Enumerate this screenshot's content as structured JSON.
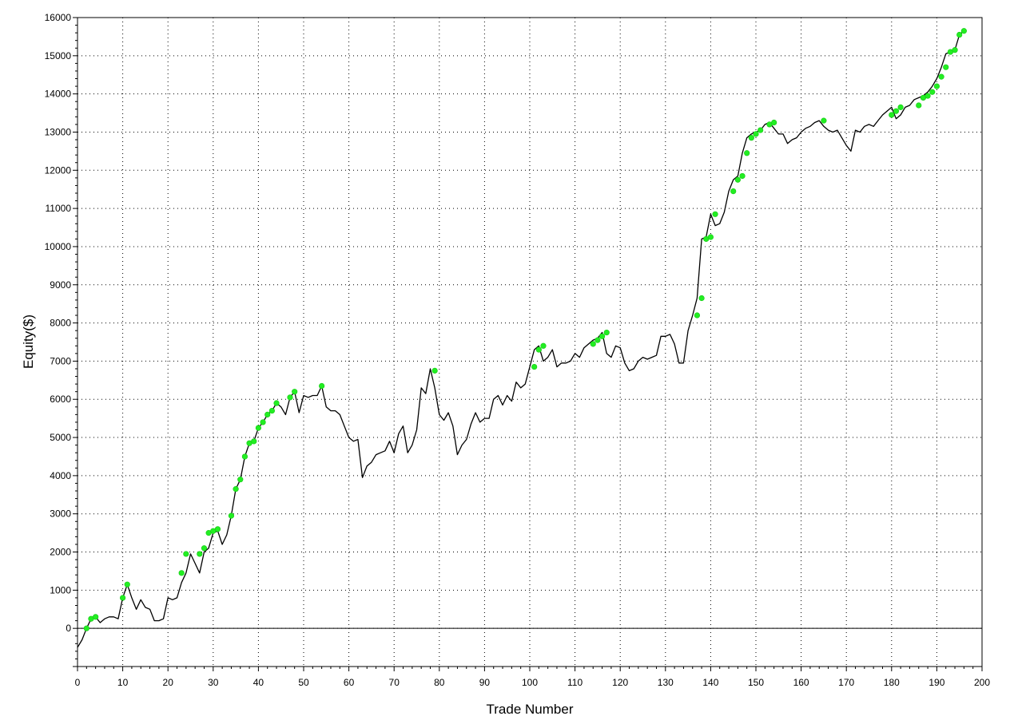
{
  "chart_data": {
    "type": "line",
    "title": "",
    "xlabel": "Trade Number",
    "ylabel": "Equity($)",
    "xlim": [
      0,
      200
    ],
    "ylim": [
      -1000,
      16000
    ],
    "x_ticks": [
      0,
      10,
      20,
      30,
      40,
      50,
      60,
      70,
      80,
      90,
      100,
      110,
      120,
      130,
      140,
      150,
      160,
      170,
      180,
      190,
      200
    ],
    "y_ticks": [
      0,
      1000,
      2000,
      3000,
      4000,
      5000,
      6000,
      7000,
      8000,
      9000,
      10000,
      11000,
      12000,
      13000,
      14000,
      15000,
      16000
    ],
    "grid": true,
    "colors": {
      "line": "#000000",
      "marker": "#22ee22"
    },
    "series": [
      {
        "values": [
          [
            0,
            -500
          ],
          [
            1,
            -300
          ],
          [
            2,
            0
          ],
          [
            3,
            250
          ],
          [
            4,
            300
          ],
          [
            5,
            150
          ],
          [
            6,
            250
          ],
          [
            7,
            300
          ],
          [
            8,
            300
          ],
          [
            9,
            250
          ],
          [
            10,
            800
          ],
          [
            11,
            1150
          ],
          [
            12,
            800
          ],
          [
            13,
            500
          ],
          [
            14,
            750
          ],
          [
            15,
            550
          ],
          [
            16,
            500
          ],
          [
            17,
            200
          ],
          [
            18,
            200
          ],
          [
            19,
            250
          ],
          [
            20,
            800
          ],
          [
            21,
            750
          ],
          [
            22,
            800
          ],
          [
            23,
            1200
          ],
          [
            24,
            1450
          ],
          [
            25,
            1950
          ],
          [
            26,
            1700
          ],
          [
            27,
            1450
          ],
          [
            28,
            2000
          ],
          [
            29,
            2100
          ],
          [
            30,
            2500
          ],
          [
            31,
            2550
          ],
          [
            32,
            2200
          ],
          [
            33,
            2450
          ],
          [
            34,
            2950
          ],
          [
            35,
            3650
          ],
          [
            36,
            3900
          ],
          [
            37,
            4500
          ],
          [
            38,
            4850
          ],
          [
            39,
            4900
          ],
          [
            40,
            5250
          ],
          [
            41,
            5400
          ],
          [
            42,
            5600
          ],
          [
            43,
            5700
          ],
          [
            44,
            5900
          ],
          [
            45,
            5800
          ],
          [
            46,
            5600
          ],
          [
            47,
            6050
          ],
          [
            48,
            6200
          ],
          [
            49,
            5650
          ],
          [
            50,
            6100
          ],
          [
            51,
            6050
          ],
          [
            52,
            6100
          ],
          [
            53,
            6100
          ],
          [
            54,
            6350
          ],
          [
            55,
            5800
          ],
          [
            56,
            5700
          ],
          [
            57,
            5700
          ],
          [
            58,
            5600
          ],
          [
            59,
            5300
          ],
          [
            60,
            5000
          ],
          [
            61,
            4900
          ],
          [
            62,
            4950
          ],
          [
            63,
            3950
          ],
          [
            64,
            4250
          ],
          [
            65,
            4350
          ],
          [
            66,
            4550
          ],
          [
            67,
            4600
          ],
          [
            68,
            4650
          ],
          [
            69,
            4900
          ],
          [
            70,
            4600
          ],
          [
            71,
            5100
          ],
          [
            72,
            5300
          ],
          [
            73,
            4600
          ],
          [
            74,
            4800
          ],
          [
            75,
            5200
          ],
          [
            76,
            6300
          ],
          [
            77,
            6150
          ],
          [
            78,
            6800
          ],
          [
            79,
            6300
          ],
          [
            80,
            5600
          ],
          [
            81,
            5450
          ],
          [
            82,
            5650
          ],
          [
            83,
            5300
          ],
          [
            84,
            4550
          ],
          [
            85,
            4800
          ],
          [
            86,
            4950
          ],
          [
            87,
            5350
          ],
          [
            88,
            5650
          ],
          [
            89,
            5400
          ],
          [
            90,
            5500
          ],
          [
            91,
            5500
          ],
          [
            92,
            6000
          ],
          [
            93,
            6100
          ],
          [
            94,
            5850
          ],
          [
            95,
            6100
          ],
          [
            96,
            5950
          ],
          [
            97,
            6450
          ],
          [
            98,
            6300
          ],
          [
            99,
            6400
          ],
          [
            100,
            6850
          ],
          [
            101,
            7300
          ],
          [
            102,
            7400
          ],
          [
            103,
            7000
          ],
          [
            104,
            7100
          ],
          [
            105,
            7300
          ],
          [
            106,
            6850
          ],
          [
            107,
            6950
          ],
          [
            108,
            6950
          ],
          [
            109,
            7000
          ],
          [
            110,
            7200
          ],
          [
            111,
            7100
          ],
          [
            112,
            7350
          ],
          [
            113,
            7450
          ],
          [
            114,
            7550
          ],
          [
            115,
            7600
          ],
          [
            116,
            7750
          ],
          [
            117,
            7200
          ],
          [
            118,
            7100
          ],
          [
            119,
            7400
          ],
          [
            120,
            7350
          ],
          [
            121,
            6950
          ],
          [
            122,
            6750
          ],
          [
            123,
            6800
          ],
          [
            124,
            7000
          ],
          [
            125,
            7100
          ],
          [
            126,
            7050
          ],
          [
            127,
            7100
          ],
          [
            128,
            7150
          ],
          [
            129,
            7650
          ],
          [
            130,
            7650
          ],
          [
            131,
            7700
          ],
          [
            132,
            7450
          ],
          [
            133,
            6950
          ],
          [
            134,
            6950
          ],
          [
            135,
            7800
          ],
          [
            136,
            8200
          ],
          [
            137,
            8650
          ],
          [
            138,
            10200
          ],
          [
            139,
            10250
          ],
          [
            140,
            10850
          ],
          [
            141,
            10550
          ],
          [
            142,
            10600
          ],
          [
            143,
            10900
          ],
          [
            144,
            11450
          ],
          [
            145,
            11750
          ],
          [
            146,
            11850
          ],
          [
            147,
            12450
          ],
          [
            148,
            12850
          ],
          [
            149,
            12950
          ],
          [
            150,
            13000
          ],
          [
            151,
            13050
          ],
          [
            152,
            13200
          ],
          [
            153,
            13250
          ],
          [
            154,
            13100
          ],
          [
            155,
            12950
          ],
          [
            156,
            12950
          ],
          [
            157,
            12700
          ],
          [
            158,
            12800
          ],
          [
            159,
            12850
          ],
          [
            160,
            13000
          ],
          [
            161,
            13100
          ],
          [
            162,
            13150
          ],
          [
            163,
            13250
          ],
          [
            164,
            13300
          ],
          [
            165,
            13150
          ],
          [
            166,
            13050
          ],
          [
            167,
            13000
          ],
          [
            168,
            13050
          ],
          [
            169,
            12850
          ],
          [
            170,
            12650
          ],
          [
            171,
            12500
          ],
          [
            172,
            13050
          ],
          [
            173,
            13000
          ],
          [
            174,
            13150
          ],
          [
            175,
            13200
          ],
          [
            176,
            13150
          ],
          [
            177,
            13300
          ],
          [
            178,
            13450
          ],
          [
            179,
            13550
          ],
          [
            180,
            13650
          ],
          [
            181,
            13350
          ],
          [
            182,
            13450
          ],
          [
            183,
            13650
          ],
          [
            184,
            13700
          ],
          [
            185,
            13850
          ],
          [
            186,
            13900
          ],
          [
            187,
            13950
          ],
          [
            188,
            14050
          ],
          [
            189,
            14200
          ],
          [
            190,
            14400
          ],
          [
            191,
            14700
          ],
          [
            192,
            15050
          ],
          [
            193,
            15100
          ],
          [
            194,
            15150
          ],
          [
            195,
            15550
          ],
          [
            196,
            15650
          ]
        ],
        "markers": [
          [
            2,
            0
          ],
          [
            3,
            250
          ],
          [
            4,
            300
          ],
          [
            10,
            800
          ],
          [
            11,
            1150
          ],
          [
            23,
            1450
          ],
          [
            24,
            1950
          ],
          [
            27,
            1950
          ],
          [
            28,
            2100
          ],
          [
            29,
            2500
          ],
          [
            30,
            2550
          ],
          [
            31,
            2600
          ],
          [
            34,
            2950
          ],
          [
            35,
            3650
          ],
          [
            36,
            3900
          ],
          [
            37,
            4500
          ],
          [
            38,
            4850
          ],
          [
            39,
            4900
          ],
          [
            40,
            5250
          ],
          [
            41,
            5400
          ],
          [
            42,
            5600
          ],
          [
            43,
            5700
          ],
          [
            44,
            5900
          ],
          [
            47,
            6050
          ],
          [
            48,
            6200
          ],
          [
            54,
            6350
          ],
          [
            79,
            6750
          ],
          [
            101,
            6850
          ],
          [
            102,
            7300
          ],
          [
            103,
            7400
          ],
          [
            114,
            7450
          ],
          [
            115,
            7550
          ],
          [
            116,
            7650
          ],
          [
            117,
            7750
          ],
          [
            137,
            8200
          ],
          [
            138,
            8650
          ],
          [
            139,
            10200
          ],
          [
            140,
            10250
          ],
          [
            141,
            10850
          ],
          [
            145,
            11450
          ],
          [
            146,
            11750
          ],
          [
            147,
            11850
          ],
          [
            148,
            12450
          ],
          [
            149,
            12850
          ],
          [
            150,
            12950
          ],
          [
            151,
            13050
          ],
          [
            153,
            13200
          ],
          [
            154,
            13250
          ],
          [
            165,
            13300
          ],
          [
            180,
            13450
          ],
          [
            181,
            13550
          ],
          [
            182,
            13650
          ],
          [
            186,
            13700
          ],
          [
            187,
            13900
          ],
          [
            188,
            13950
          ],
          [
            189,
            14050
          ],
          [
            190,
            14200
          ],
          [
            191,
            14450
          ],
          [
            192,
            14700
          ],
          [
            193,
            15100
          ],
          [
            194,
            15150
          ],
          [
            195,
            15550
          ],
          [
            196,
            15650
          ]
        ]
      }
    ]
  }
}
